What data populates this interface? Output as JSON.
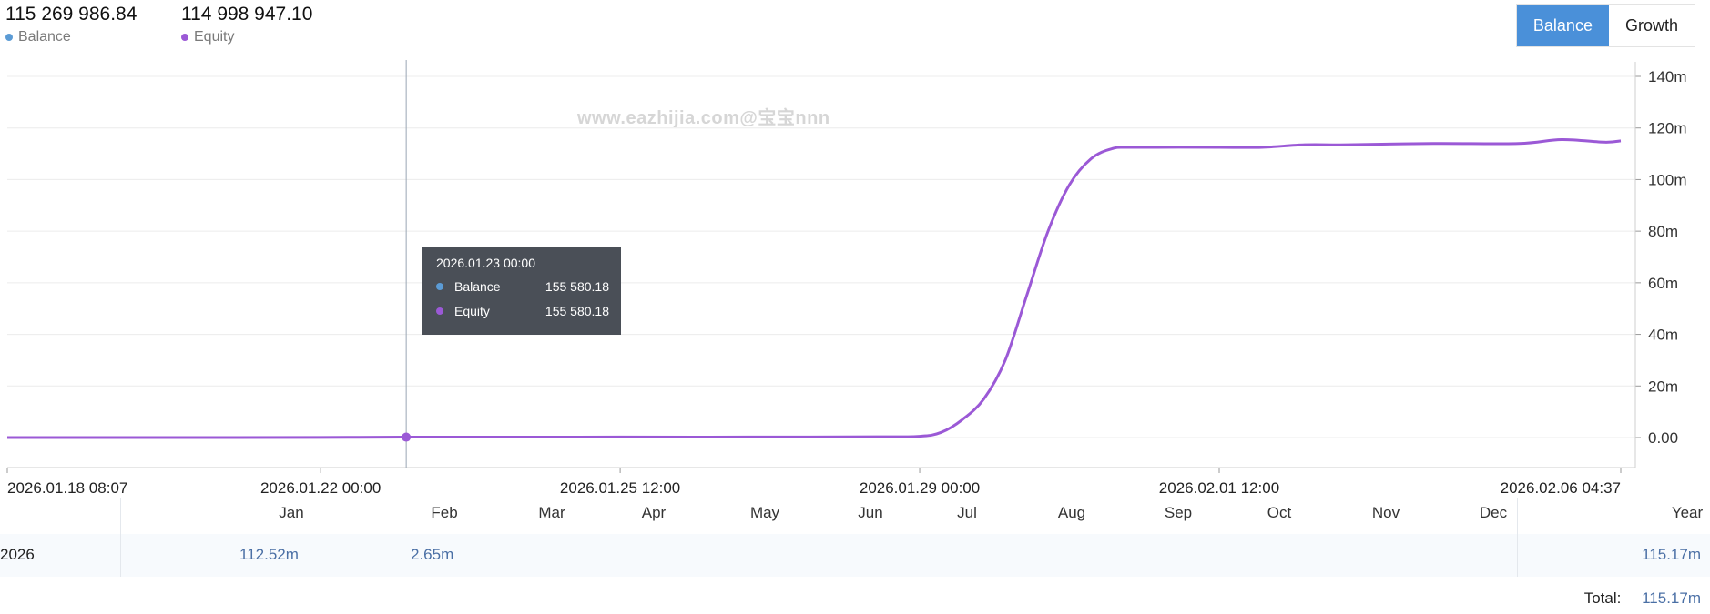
{
  "header": {
    "balance_value": "115 269 986.84",
    "balance_label": "Balance",
    "equity_value": "114 998 947.10",
    "equity_label": "Equity"
  },
  "toggle": {
    "balance_label": "Balance",
    "growth_label": "Growth",
    "active": "Balance"
  },
  "watermark": "www.eazhijia.com@宝宝nnn",
  "colors": {
    "balance": "#5b9bd5",
    "equity": "#9b59d6",
    "accent": "#4a90d9",
    "tooltip_bg": "#4a4f57",
    "year_value": "#4a6fa5"
  },
  "tooltip": {
    "title": "2026.01.23 00:00",
    "rows": [
      {
        "name": "Balance",
        "value": "155 580.18"
      },
      {
        "name": "Equity",
        "value": "155 580.18"
      }
    ]
  },
  "chart_data": {
    "type": "line",
    "y_axis": {
      "min": -10,
      "max": 140,
      "ticks": [
        "0.00",
        "20m",
        "40m",
        "60m",
        "80m",
        "100m",
        "120m",
        "140m"
      ],
      "tick_values": [
        0,
        20,
        40,
        60,
        80,
        100,
        120,
        140
      ],
      "position": "right"
    },
    "x_axis": {
      "start": "2026.01.18 08:07",
      "end": "2026.02.06 04:37",
      "ticks": [
        "2026.01.18 08:07",
        "2026.01.22 00:00",
        "2026.01.25 12:00",
        "2026.01.29 00:00",
        "2026.02.01 12:00",
        "2026.02.06 04:37"
      ]
    },
    "grid": true,
    "crosshair_at": "2026.01.23 00:00",
    "series": [
      {
        "name": "Equity",
        "points": [
          [
            "2026.01.18 08:07",
            0.0
          ],
          [
            "2026.01.20 00:00",
            0.0
          ],
          [
            "2026.01.22 00:00",
            0.05
          ],
          [
            "2026.01.23 00:00",
            0.16
          ],
          [
            "2026.01.25 12:00",
            0.2
          ],
          [
            "2026.01.27 00:00",
            0.2
          ],
          [
            "2026.01.28 12:00",
            0.3
          ],
          [
            "2026.01.29 00:00",
            0.5
          ],
          [
            "2026.01.29 06:00",
            2
          ],
          [
            "2026.01.29 12:00",
            7
          ],
          [
            "2026.01.29 18:00",
            15
          ],
          [
            "2026.01.30 00:00",
            30
          ],
          [
            "2026.01.30 06:00",
            55
          ],
          [
            "2026.01.30 12:00",
            80
          ],
          [
            "2026.01.30 18:00",
            98
          ],
          [
            "2026.01.31 00:00",
            108
          ],
          [
            "2026.01.31 06:00",
            112
          ],
          [
            "2026.01.31 12:00",
            112.5
          ],
          [
            "2026.02.01 12:00",
            112.5
          ],
          [
            "2026.02.02 00:00",
            112.5
          ],
          [
            "2026.02.02 12:00",
            113.5
          ],
          [
            "2026.02.03 00:00",
            113.5
          ],
          [
            "2026.02.04 00:00",
            114
          ],
          [
            "2026.02.05 00:00",
            114
          ],
          [
            "2026.02.05 12:00",
            115.5
          ],
          [
            "2026.02.06 00:00",
            114.5
          ],
          [
            "2026.02.06 04:37",
            115
          ]
        ]
      }
    ]
  },
  "monthly": {
    "months": [
      "Jan",
      "Feb",
      "Mar",
      "Apr",
      "May",
      "Jun",
      "Jul",
      "Aug",
      "Sep",
      "Oct",
      "Nov",
      "Dec"
    ],
    "year_header": "Year",
    "year": "2026",
    "values": {
      "Jan": "112.52m",
      "Feb": "2.65m"
    },
    "year_total": "115.17m",
    "total_label": "Total:",
    "total_value": "115.17m"
  }
}
